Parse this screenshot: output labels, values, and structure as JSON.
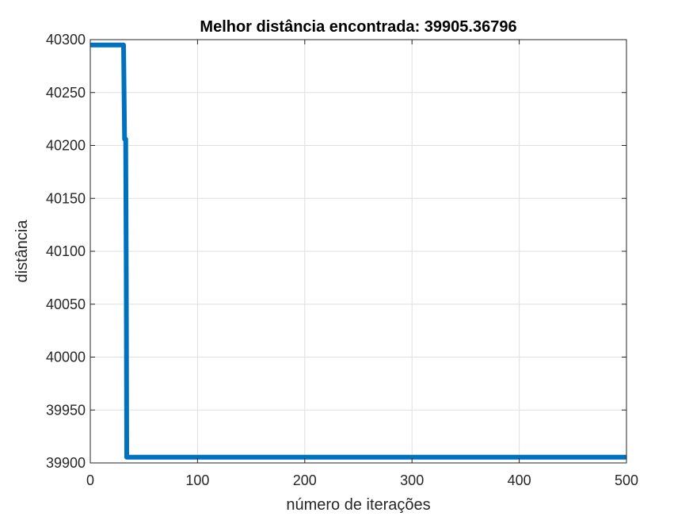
{
  "chart_data": {
    "type": "line",
    "title": "Melhor distância encontrada: 39905.36796",
    "xlabel": "número de iterações",
    "ylabel": "distância",
    "xlim": [
      0,
      500
    ],
    "ylim": [
      39900,
      40300
    ],
    "xticks": [
      0,
      100,
      200,
      300,
      400,
      500
    ],
    "yticks": [
      39900,
      39950,
      40000,
      40050,
      40100,
      40150,
      40200,
      40250,
      40300
    ],
    "grid": true,
    "series": [
      {
        "color": "#0072BD",
        "x": [
          0,
          31,
          32,
          33,
          33.5,
          34,
          500
        ],
        "y": [
          40295,
          40295,
          40206,
          40206,
          40080,
          39905.37,
          39905.37
        ]
      }
    ]
  }
}
